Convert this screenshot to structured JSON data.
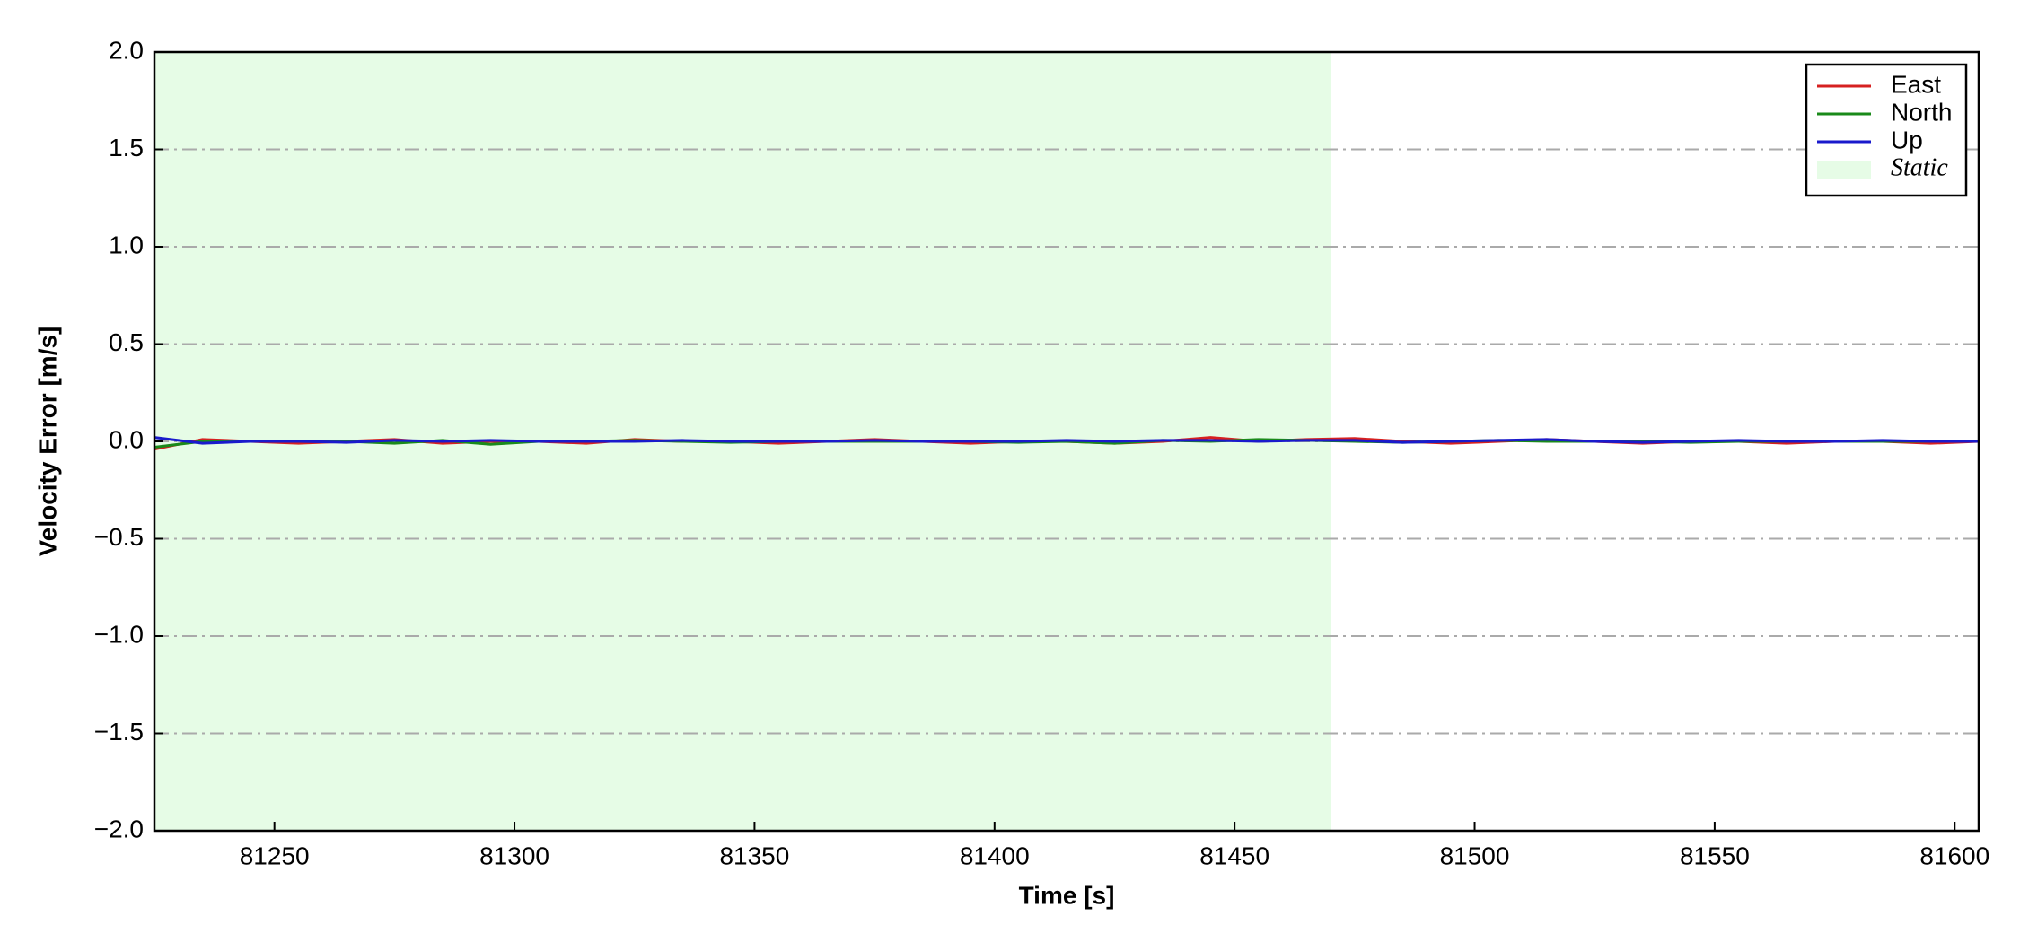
{
  "chart_data": {
    "type": "line",
    "xlabel": "Time [s]",
    "ylabel": "Velocity Error [m/s]",
    "x": [
      81225,
      81235,
      81245,
      81255,
      81265,
      81275,
      81285,
      81295,
      81305,
      81315,
      81325,
      81335,
      81345,
      81355,
      81365,
      81375,
      81385,
      81395,
      81405,
      81415,
      81425,
      81435,
      81445,
      81455,
      81465,
      81475,
      81485,
      81495,
      81505,
      81515,
      81525,
      81535,
      81545,
      81555,
      81565,
      81575,
      81585,
      81595,
      81605
    ],
    "series": [
      {
        "name": "East",
        "color": "#d62020",
        "values": [
          -0.04,
          0.01,
          0.0,
          -0.01,
          0.0,
          0.01,
          -0.01,
          0.0,
          0.0,
          -0.01,
          0.01,
          0.0,
          0.0,
          -0.01,
          0.0,
          0.01,
          0.0,
          -0.01,
          0.0,
          0.0,
          -0.01,
          0.0,
          0.02,
          0.0,
          0.01,
          0.015,
          0.0,
          -0.01,
          0.0,
          0.01,
          0.0,
          -0.01,
          0.0,
          0.0,
          -0.01,
          0.0,
          0.0,
          -0.01,
          0.0
        ]
      },
      {
        "name": "North",
        "color": "#1a8a1a",
        "values": [
          -0.03,
          0.0,
          0.0,
          0.0,
          0.0,
          -0.01,
          0.005,
          -0.015,
          0.0,
          0.0,
          0.005,
          0.0,
          -0.005,
          0.0,
          0.0,
          0.0,
          0.0,
          0.0,
          -0.005,
          0.0,
          -0.01,
          0.005,
          0.0,
          0.01,
          0.005,
          0.0,
          -0.005,
          0.0,
          0.005,
          0.0,
          0.0,
          0.0,
          -0.005,
          0.0,
          0.0,
          0.0,
          0.0,
          0.0,
          0.0
        ]
      },
      {
        "name": "Up",
        "color": "#1a1acc",
        "values": [
          0.02,
          -0.01,
          0.0,
          0.0,
          -0.005,
          0.005,
          0.0,
          0.005,
          0.0,
          0.0,
          0.0,
          0.005,
          0.0,
          0.0,
          0.0,
          0.005,
          0.0,
          0.0,
          0.0,
          0.005,
          0.0,
          0.005,
          0.005,
          0.0,
          0.005,
          0.005,
          -0.005,
          0.0,
          0.005,
          0.01,
          0.0,
          -0.005,
          0.0,
          0.005,
          0.0,
          0.0,
          0.005,
          0.0,
          0.0
        ]
      }
    ],
    "shaded_regions": [
      {
        "name": "Static",
        "start": 81225,
        "end": 81470,
        "color": "#e6fce6"
      }
    ],
    "xlim": [
      81225,
      81605
    ],
    "xticks": [
      81250,
      81300,
      81350,
      81400,
      81450,
      81500,
      81550,
      81600
    ],
    "ylim": [
      -2,
      2
    ],
    "yticks": [
      {
        "value": -2,
        "label": "−2.0"
      },
      {
        "value": -1.5,
        "label": "−1.5"
      },
      {
        "value": -1,
        "label": "−1.0"
      },
      {
        "value": -0.5,
        "label": "−0.5"
      },
      {
        "value": 0,
        "label": "0.0"
      },
      {
        "value": 0.5,
        "label": "0.5"
      },
      {
        "value": 1,
        "label": "1.0"
      },
      {
        "value": 1.5,
        "label": "1.5"
      },
      {
        "value": 2,
        "label": "2.0"
      }
    ],
    "grid": true,
    "legend": "upper right"
  }
}
